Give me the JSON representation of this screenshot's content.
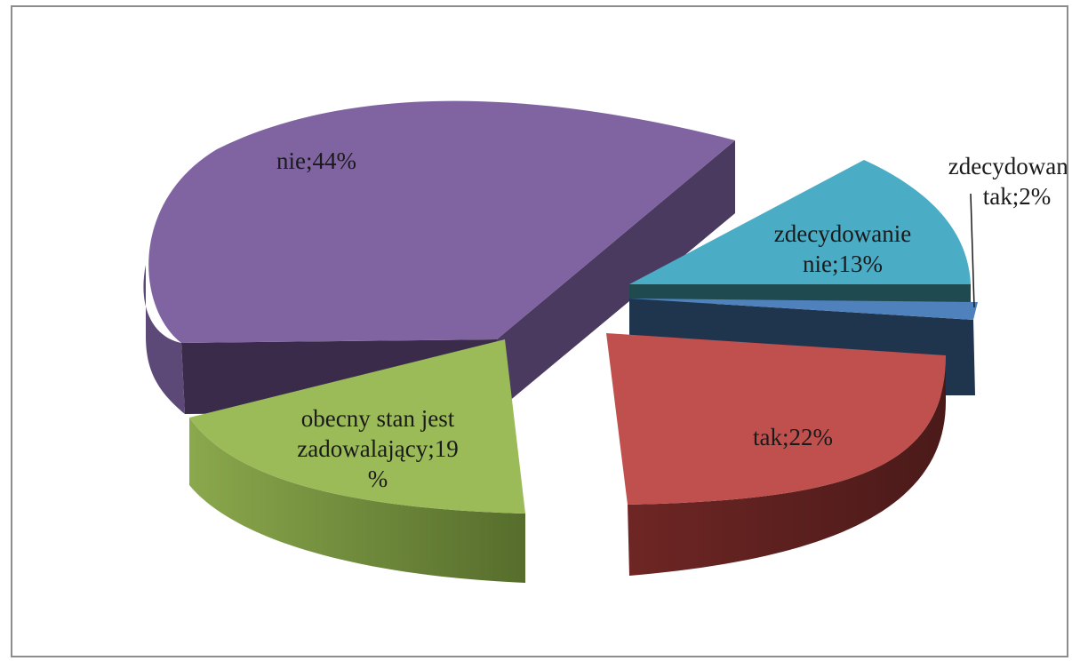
{
  "chart_data": {
    "type": "pie",
    "title": "",
    "style": "3d-exploded",
    "slices": [
      {
        "name": "zdecydowanie tak",
        "value": 2,
        "unit": "%",
        "label_lines": [
          "zdecydowanie",
          "tak;2%"
        ],
        "color": "#4F81BD"
      },
      {
        "name": "tak",
        "value": 22,
        "unit": "%",
        "label_lines": [
          "tak;22%"
        ],
        "color": "#C0504D"
      },
      {
        "name": "obecny stan jest zadowalający",
        "value": 19,
        "unit": "%",
        "label_lines": [
          "obecny stan jest",
          "zadowalający;19",
          "%"
        ],
        "color": "#9BBB59"
      },
      {
        "name": "nie",
        "value": 44,
        "unit": "%",
        "label_lines": [
          "nie;44%"
        ],
        "color": "#8064A2"
      },
      {
        "name": "zdecydowanie nie",
        "value": 13,
        "unit": "%",
        "label_lines": [
          "zdecydowanie",
          "nie;13%"
        ],
        "color": "#4BACC6"
      }
    ]
  }
}
